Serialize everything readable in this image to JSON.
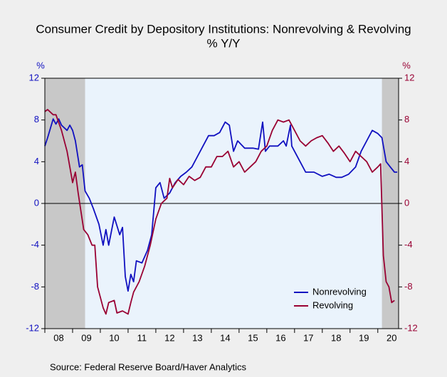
{
  "chart_data": {
    "type": "line",
    "title": "Consumer Credit by Depository Institutions: Nonrevolving & Revolving",
    "subtitle": "% Y/Y",
    "ylabel": "%",
    "y2label": "%",
    "source": "Source:  Federal Reserve Board/Haver Analytics",
    "xlim": [
      2008.0,
      2020.75
    ],
    "xticks": [
      {
        "value": 2008.5,
        "label": "08"
      },
      {
        "value": 2009.5,
        "label": "09"
      },
      {
        "value": 2010.5,
        "label": "10"
      },
      {
        "value": 2011.5,
        "label": "11"
      },
      {
        "value": 2012.5,
        "label": "12"
      },
      {
        "value": 2013.5,
        "label": "13"
      },
      {
        "value": 2014.5,
        "label": "14"
      },
      {
        "value": 2015.5,
        "label": "15"
      },
      {
        "value": 2016.5,
        "label": "16"
      },
      {
        "value": 2017.5,
        "label": "17"
      },
      {
        "value": 2018.5,
        "label": "18"
      },
      {
        "value": 2019.5,
        "label": "19"
      },
      {
        "value": 2020.5,
        "label": "20"
      }
    ],
    "ylim": [
      -12,
      12
    ],
    "yticks": [
      -12,
      -8,
      -4,
      0,
      4,
      8,
      12
    ],
    "y2lim": [
      -12,
      12
    ],
    "y2ticks": [
      -12,
      -8,
      -4,
      0,
      4,
      8,
      12
    ],
    "shaded": [
      [
        2008.0,
        2009.45
      ],
      [
        2020.15,
        2020.75
      ]
    ],
    "legend": "lower right",
    "series": [
      {
        "name": "Nonrevolving",
        "color": "#1010c0",
        "x": [
          2008.0,
          2008.1,
          2008.2,
          2008.3,
          2008.4,
          2008.5,
          2008.6,
          2008.8,
          2008.9,
          2009.0,
          2009.1,
          2009.25,
          2009.35,
          2009.45,
          2009.6,
          2009.75,
          2009.95,
          2010.1,
          2010.2,
          2010.3,
          2010.5,
          2010.7,
          2010.8,
          2010.9,
          2011.0,
          2011.1,
          2011.2,
          2011.3,
          2011.5,
          2011.7,
          2011.85,
          2012.0,
          2012.15,
          2012.3,
          2012.5,
          2012.7,
          2012.9,
          2013.1,
          2013.3,
          2013.5,
          2013.7,
          2013.9,
          2014.1,
          2014.3,
          2014.5,
          2014.65,
          2014.8,
          2014.95,
          2015.2,
          2015.5,
          2015.7,
          2015.85,
          2015.95,
          2016.1,
          2016.4,
          2016.6,
          2016.7,
          2016.85,
          2016.9,
          2017.0,
          2017.2,
          2017.4,
          2017.7,
          2018.0,
          2018.25,
          2018.5,
          2018.7,
          2018.95,
          2019.2,
          2019.4,
          2019.6,
          2019.8,
          2020.0,
          2020.15,
          2020.3,
          2020.45,
          2020.6,
          2020.7
        ],
        "values": [
          5.5,
          6.3,
          7.2,
          8.1,
          7.6,
          8.1,
          7.5,
          7.0,
          7.5,
          7.0,
          6.0,
          3.5,
          3.7,
          1.2,
          0.5,
          -0.5,
          -2.0,
          -4.0,
          -2.5,
          -4.0,
          -1.3,
          -3.0,
          -2.3,
          -7.0,
          -8.4,
          -6.8,
          -7.5,
          -5.5,
          -5.7,
          -4.5,
          -3.0,
          1.5,
          2.0,
          0.5,
          1.0,
          2.0,
          2.6,
          3.0,
          3.5,
          4.5,
          5.5,
          6.5,
          6.5,
          6.8,
          7.8,
          7.5,
          5.0,
          6.0,
          5.3,
          5.3,
          5.2,
          7.8,
          5.0,
          5.5,
          5.5,
          6.0,
          5.5,
          7.5,
          5.5,
          5.0,
          4.0,
          3.0,
          3.0,
          2.6,
          2.8,
          2.5,
          2.5,
          2.8,
          3.5,
          5.0,
          6.0,
          7.0,
          6.7,
          6.3,
          4.0,
          3.5,
          3.0,
          3.0
        ]
      },
      {
        "name": "Revolving",
        "color": "#990033",
        "x": [
          2008.0,
          2008.1,
          2008.3,
          2008.4,
          2008.6,
          2008.8,
          2009.0,
          2009.1,
          2009.2,
          2009.4,
          2009.55,
          2009.7,
          2009.8,
          2009.9,
          2010.1,
          2010.2,
          2010.3,
          2010.5,
          2010.6,
          2010.8,
          2011.0,
          2011.1,
          2011.2,
          2011.4,
          2011.6,
          2011.8,
          2012.0,
          2012.2,
          2012.4,
          2012.5,
          2012.6,
          2012.8,
          2013.0,
          2013.2,
          2013.4,
          2013.6,
          2013.8,
          2014.0,
          2014.2,
          2014.4,
          2014.6,
          2014.8,
          2015.0,
          2015.2,
          2015.4,
          2015.6,
          2015.8,
          2016.0,
          2016.2,
          2016.4,
          2016.6,
          2016.8,
          2017.0,
          2017.2,
          2017.4,
          2017.6,
          2017.8,
          2018.0,
          2018.2,
          2018.4,
          2018.6,
          2018.8,
          2019.0,
          2019.2,
          2019.4,
          2019.6,
          2019.8,
          2020.0,
          2020.1,
          2020.2,
          2020.3,
          2020.4,
          2020.5,
          2020.6
        ],
        "values": [
          8.8,
          9.0,
          8.5,
          8.5,
          7.0,
          5.0,
          2.0,
          3.0,
          1.0,
          -2.5,
          -3.0,
          -4.0,
          -4.0,
          -8.0,
          -10.0,
          -10.6,
          -9.5,
          -9.3,
          -10.5,
          -10.3,
          -10.6,
          -9.5,
          -8.5,
          -7.5,
          -6.0,
          -4.0,
          -1.5,
          0.0,
          0.5,
          2.4,
          1.5,
          2.3,
          1.8,
          2.6,
          2.2,
          2.5,
          3.5,
          3.5,
          4.5,
          4.5,
          5.0,
          3.5,
          4.0,
          3.0,
          3.5,
          4.0,
          5.0,
          5.5,
          7.0,
          8.0,
          7.8,
          8.0,
          7.0,
          6.0,
          5.5,
          6.0,
          6.3,
          6.5,
          5.8,
          5.0,
          5.5,
          4.8,
          4.0,
          5.0,
          4.5,
          4.0,
          3.0,
          3.5,
          3.8,
          -5.0,
          -7.5,
          -8.0,
          -9.5,
          -9.3
        ]
      }
    ]
  }
}
